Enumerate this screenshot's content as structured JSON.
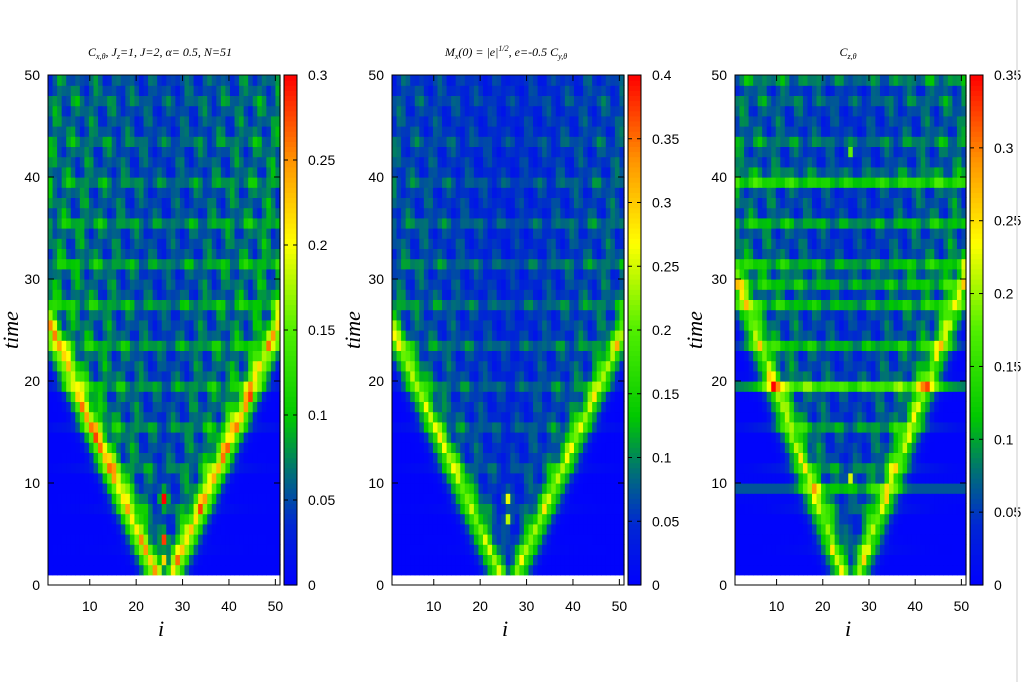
{
  "chart_data": [
    {
      "type": "heatmap",
      "title": "C_{x,θ}, J_z=1,  J=2, α= 0.5, N=51",
      "title_parts": {
        "c": "C",
        "c_sub": "x,θ",
        "j": ", J",
        "j_sub": "z",
        "rest": "=1,  J=2, α= 0.5, N=51"
      },
      "xlabel": "i",
      "ylabel": "time",
      "xlim": [
        1,
        51
      ],
      "ylim": [
        0,
        50
      ],
      "x_ticks": [
        10,
        20,
        30,
        40,
        50
      ],
      "y_ticks": [
        0,
        10,
        20,
        30,
        40,
        50
      ],
      "colorbar": {
        "range": [
          0,
          0.3
        ],
        "ticks": [
          "0",
          "0.05",
          "0.1",
          "0.15",
          "0.2",
          "0.25",
          "0.3"
        ],
        "tick_values": [
          0,
          0.05,
          0.1,
          0.15,
          0.2,
          0.25,
          0.3
        ]
      },
      "pattern": {
        "front_speed": 0.235,
        "ridge_peak": 0.16,
        "bands": false,
        "hotspots": [
          {
            "i": 26,
            "t": 8.5,
            "value": 0.3
          },
          {
            "i": 26,
            "t": 4.5,
            "value": 0.28
          },
          {
            "i": 26,
            "t": 2.5,
            "value": 0.22
          }
        ]
      }
    },
    {
      "type": "heatmap",
      "title": "M_x(0) = |e|^{1/2}, e=-0.5  C_{y,θ}",
      "title_parts": {
        "m": "M",
        "m_sub": "x",
        "mid": "(0) = |e|",
        "sup": "1/2",
        "rest": ", e=-0.5  C",
        "c_sub": "y,θ"
      },
      "xlabel": "i",
      "ylabel": "time",
      "xlim": [
        1,
        51
      ],
      "ylim": [
        0,
        50
      ],
      "x_ticks": [
        10,
        20,
        30,
        40,
        50
      ],
      "y_ticks": [
        0,
        10,
        20,
        30,
        40,
        50
      ],
      "colorbar": {
        "range": [
          0,
          0.4
        ],
        "ticks": [
          "0",
          "0.05",
          "0.1",
          "0.15",
          "0.2",
          "0.25",
          "0.3",
          "0.35",
          "0.4"
        ],
        "tick_values": [
          0,
          0.05,
          0.1,
          0.15,
          0.2,
          0.25,
          0.3,
          0.35,
          0.4
        ]
      },
      "pattern": {
        "front_speed": 0.24,
        "ridge_peak": 0.17,
        "bands": false,
        "hotspots": [
          {
            "i": 26,
            "t": 8.5,
            "value": 0.26
          },
          {
            "i": 26,
            "t": 6.5,
            "value": 0.24
          }
        ]
      }
    },
    {
      "type": "heatmap",
      "title": "C_{z,θ}",
      "title_parts": {
        "c": "C",
        "c_sub": "z,θ"
      },
      "xlabel": "i",
      "ylabel": "time",
      "xlim": [
        1,
        51
      ],
      "ylim": [
        0,
        50
      ],
      "x_ticks": [
        10,
        20,
        30,
        40,
        50
      ],
      "y_ticks": [
        0,
        10,
        20,
        30,
        40,
        50
      ],
      "colorbar": {
        "range": [
          0,
          0.35
        ],
        "ticks": [
          "0",
          "0.05",
          "0.1",
          "0.15",
          "0.2",
          "0.25",
          "0.3",
          "0.35"
        ],
        "tick_values": [
          0,
          0.05,
          0.1,
          0.15,
          0.2,
          0.25,
          0.3,
          0.35
        ]
      },
      "pattern": {
        "front_speed": 0.2,
        "ridge_peak": 0.14,
        "bands": true,
        "hotspots": [
          {
            "i": 26,
            "t": 10.5,
            "value": 0.22
          },
          {
            "i": 26,
            "t": 42.5,
            "value": 0.18
          }
        ]
      }
    }
  ]
}
